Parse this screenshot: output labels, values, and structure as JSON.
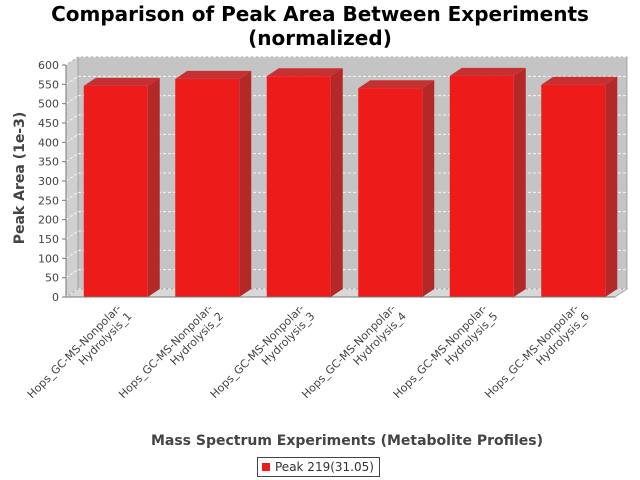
{
  "chart_data": {
    "type": "bar",
    "title_line1": "Comparison of Peak Area Between Experiments",
    "title_line2": "(normalized)",
    "xlabel": "Mass Spectrum Experiments (Metabolite Profiles)",
    "ylabel": "Peak Area (1e-3)",
    "ylim": [
      0,
      600
    ],
    "yticks": [
      0,
      50,
      100,
      150,
      200,
      250,
      300,
      350,
      400,
      450,
      500,
      550,
      600
    ],
    "grid": true,
    "legend_position": "bottom",
    "categories": [
      [
        "Hops_GC-MS-Nonpolar-",
        "Hydrolysis_1"
      ],
      [
        "Hops_GC-MS-Nonpolar-",
        "Hydrolysis_2"
      ],
      [
        "Hops_GC-MS-Nonpolar-",
        "Hydrolysis_3"
      ],
      [
        "Hops_GC-MS-Nonpolar-",
        "Hydrolysis_4"
      ],
      [
        "Hops_GC-MS-Nonpolar-",
        "Hydrolysis_5"
      ],
      [
        "Hops_GC-MS-Nonpolar-",
        "Hydrolysis_6"
      ]
    ],
    "series": [
      {
        "name": "Peak 219(31.05)",
        "color": "#ee1b1b",
        "values": [
          546,
          564,
          571,
          540,
          572,
          549
        ]
      }
    ]
  }
}
